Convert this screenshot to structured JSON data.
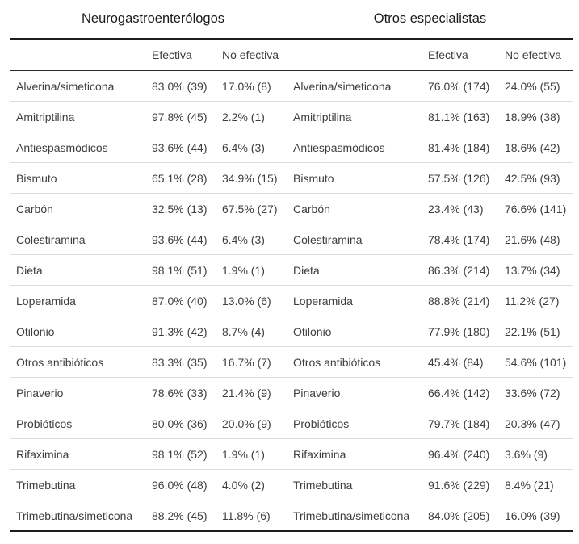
{
  "chart_data": {
    "type": "table",
    "groups": [
      {
        "title": "Neurogastroenterólogos",
        "columns": [
          "Efectiva",
          "No efectiva"
        ]
      },
      {
        "title": "Otros especialistas",
        "columns": [
          "Efectiva",
          "No efectiva"
        ]
      }
    ],
    "rows": [
      {
        "label": "Alverina/simeticona",
        "cells": [
          [
            "83.0% (39)",
            "17.0% (8)"
          ],
          [
            "76.0% (174)",
            "24.0% (55)"
          ]
        ]
      },
      {
        "label": "Amitriptilina",
        "cells": [
          [
            "97.8% (45)",
            "2.2% (1)"
          ],
          [
            "81.1% (163)",
            "18.9% (38)"
          ]
        ]
      },
      {
        "label": "Antiespasmódicos",
        "cells": [
          [
            "93.6% (44)",
            "6.4% (3)"
          ],
          [
            "81.4% (184)",
            "18.6% (42)"
          ]
        ]
      },
      {
        "label": "Bismuto",
        "cells": [
          [
            "65.1% (28)",
            "34.9% (15)"
          ],
          [
            "57.5% (126)",
            "42.5% (93)"
          ]
        ]
      },
      {
        "label": "Carbón",
        "cells": [
          [
            "32.5% (13)",
            "67.5% (27)"
          ],
          [
            "23.4% (43)",
            "76.6% (141)"
          ]
        ]
      },
      {
        "label": "Colestiramina",
        "cells": [
          [
            "93.6% (44)",
            "6.4% (3)"
          ],
          [
            "78.4% (174)",
            "21.6% (48)"
          ]
        ]
      },
      {
        "label": "Dieta",
        "cells": [
          [
            "98.1% (51)",
            "1.9% (1)"
          ],
          [
            "86.3% (214)",
            "13.7% (34)"
          ]
        ]
      },
      {
        "label": "Loperamida",
        "cells": [
          [
            "87.0% (40)",
            "13.0% (6)"
          ],
          [
            "88.8% (214)",
            "11.2% (27)"
          ]
        ]
      },
      {
        "label": "Otilonio",
        "cells": [
          [
            "91.3% (42)",
            "8.7% (4)"
          ],
          [
            "77.9% (180)",
            "22.1% (51)"
          ]
        ]
      },
      {
        "label": "Otros antibióticos",
        "cells": [
          [
            "83.3% (35)",
            "16.7% (7)"
          ],
          [
            "45.4% (84)",
            "54.6% (101)"
          ]
        ]
      },
      {
        "label": "Pinaverio",
        "cells": [
          [
            "78.6% (33)",
            "21.4% (9)"
          ],
          [
            "66.4% (142)",
            "33.6% (72)"
          ]
        ]
      },
      {
        "label": "Probióticos",
        "cells": [
          [
            "80.0% (36)",
            "20.0% (9)"
          ],
          [
            "79.7% (184)",
            "20.3% (47)"
          ]
        ]
      },
      {
        "label": "Rifaximina",
        "cells": [
          [
            "98.1% (52)",
            "1.9% (1)"
          ],
          [
            "96.4% (240)",
            "3.6% (9)"
          ]
        ]
      },
      {
        "label": "Trimebutina",
        "cells": [
          [
            "96.0% (48)",
            "4.0% (2)"
          ],
          [
            "91.6% (229)",
            "8.4% (21)"
          ]
        ]
      },
      {
        "label": "Trimebutina/simeticona",
        "cells": [
          [
            "88.2% (45)",
            "11.8% (6)"
          ],
          [
            "84.0% (205)",
            "16.0% (39)"
          ]
        ]
      }
    ]
  }
}
